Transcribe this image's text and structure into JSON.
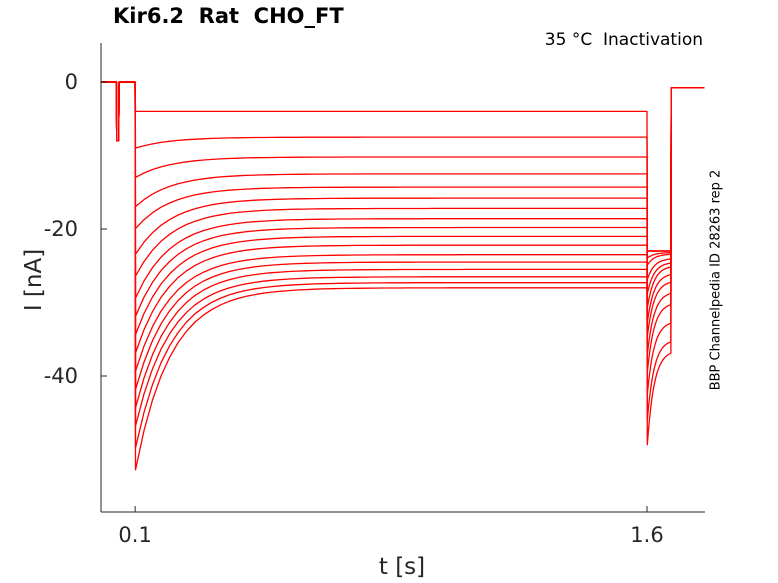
{
  "chart_data": {
    "type": "line",
    "title": "Kir6.2  Rat  CHO_FT",
    "annotation": "35 °C  Inactivation",
    "side_label": "BBP Channelpedia ID 28263 rep 2",
    "xlabel": "t [s]",
    "ylabel": "I [nA]",
    "x_ticks": [
      0.1,
      1.6
    ],
    "y_ticks": [
      0,
      -20,
      -40
    ],
    "xlim": [
      0.0,
      1.77
    ],
    "ylim": [
      -58,
      5
    ],
    "line_color": "#ff0000",
    "grid": false,
    "protocol": {
      "prepulse_start": 0.045,
      "prepulse_end": 0.052,
      "prepulse_I": -8,
      "step_start": 0.1,
      "step_end": 1.6,
      "return_end": 1.67,
      "final_I": -0.8
    },
    "series": [
      {
        "peak": -4,
        "steady": -4,
        "tail_peak": -23,
        "tail_end": -23
      },
      {
        "peak": -9,
        "steady": -7.5,
        "tail_peak": -23,
        "tail_end": -23
      },
      {
        "peak": -13,
        "steady": -10.2,
        "tail_peak": -23,
        "tail_end": -23
      },
      {
        "peak": -17,
        "steady": -12.5,
        "tail_peak": -23,
        "tail_end": -23
      },
      {
        "peak": -20,
        "steady": -14.3,
        "tail_peak": -23,
        "tail_end": -23
      },
      {
        "peak": -23.5,
        "steady": -15.8,
        "tail_peak": -24,
        "tail_end": -23.2
      },
      {
        "peak": -26.5,
        "steady": -17.2,
        "tail_peak": -25,
        "tail_end": -23.4
      },
      {
        "peak": -29.5,
        "steady": -18.6,
        "tail_peak": -27,
        "tail_end": -24
      },
      {
        "peak": -32,
        "steady": -19.8,
        "tail_peak": -29,
        "tail_end": -24.5
      },
      {
        "peak": -34.5,
        "steady": -21,
        "tail_peak": -31,
        "tail_end": -25
      },
      {
        "peak": -37,
        "steady": -22.2,
        "tail_peak": -33,
        "tail_end": -26
      },
      {
        "peak": -39.5,
        "steady": -23.5,
        "tail_peak": -35,
        "tail_end": -27
      },
      {
        "peak": -42,
        "steady": -24.5,
        "tail_peak": -37.5,
        "tail_end": -28.5
      },
      {
        "peak": -44.5,
        "steady": -25.5,
        "tail_peak": -40,
        "tail_end": -30
      },
      {
        "peak": -47,
        "steady": -26.5,
        "tail_peak": -43,
        "tail_end": -32.5
      },
      {
        "peak": -50,
        "steady": -27.3,
        "tail_peak": -46.5,
        "tail_end": -35
      },
      {
        "peak": -53,
        "steady": -28,
        "tail_peak": -50,
        "tail_end": -36.5
      }
    ]
  }
}
